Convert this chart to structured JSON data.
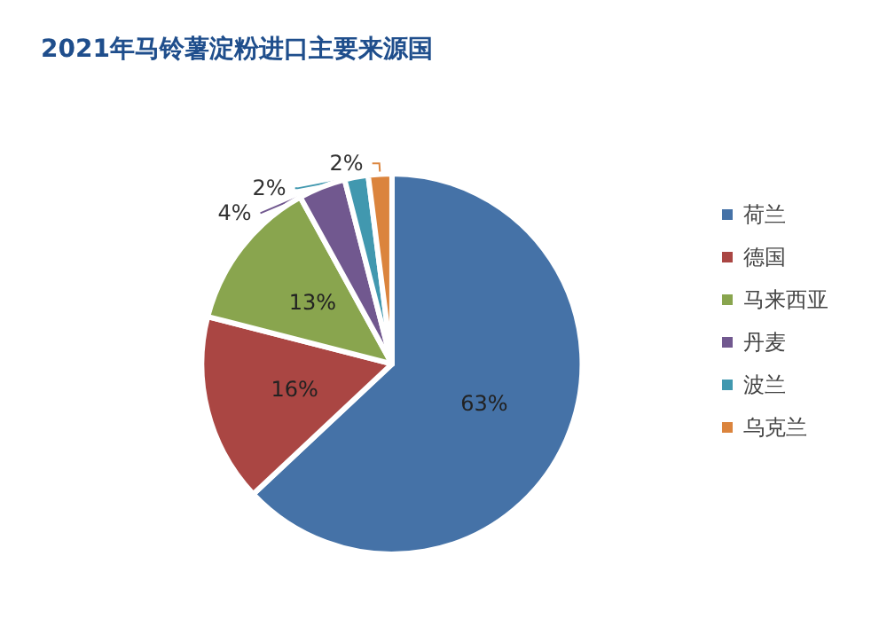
{
  "chart_data": {
    "type": "pie",
    "title": "2021年马铃薯淀粉进口主要来源国",
    "categories": [
      "荷兰",
      "德国",
      "马来西亚",
      "丹麦",
      "波兰",
      "乌克兰"
    ],
    "values": [
      63,
      16,
      13,
      4,
      2,
      2
    ],
    "value_labels": [
      "63%",
      "16%",
      "13%",
      "4%",
      "2%",
      "2%"
    ],
    "colors": [
      "#4572a7",
      "#aa4643",
      "#89a54e",
      "#71588f",
      "#4198af",
      "#db843d"
    ],
    "legend": "right"
  }
}
